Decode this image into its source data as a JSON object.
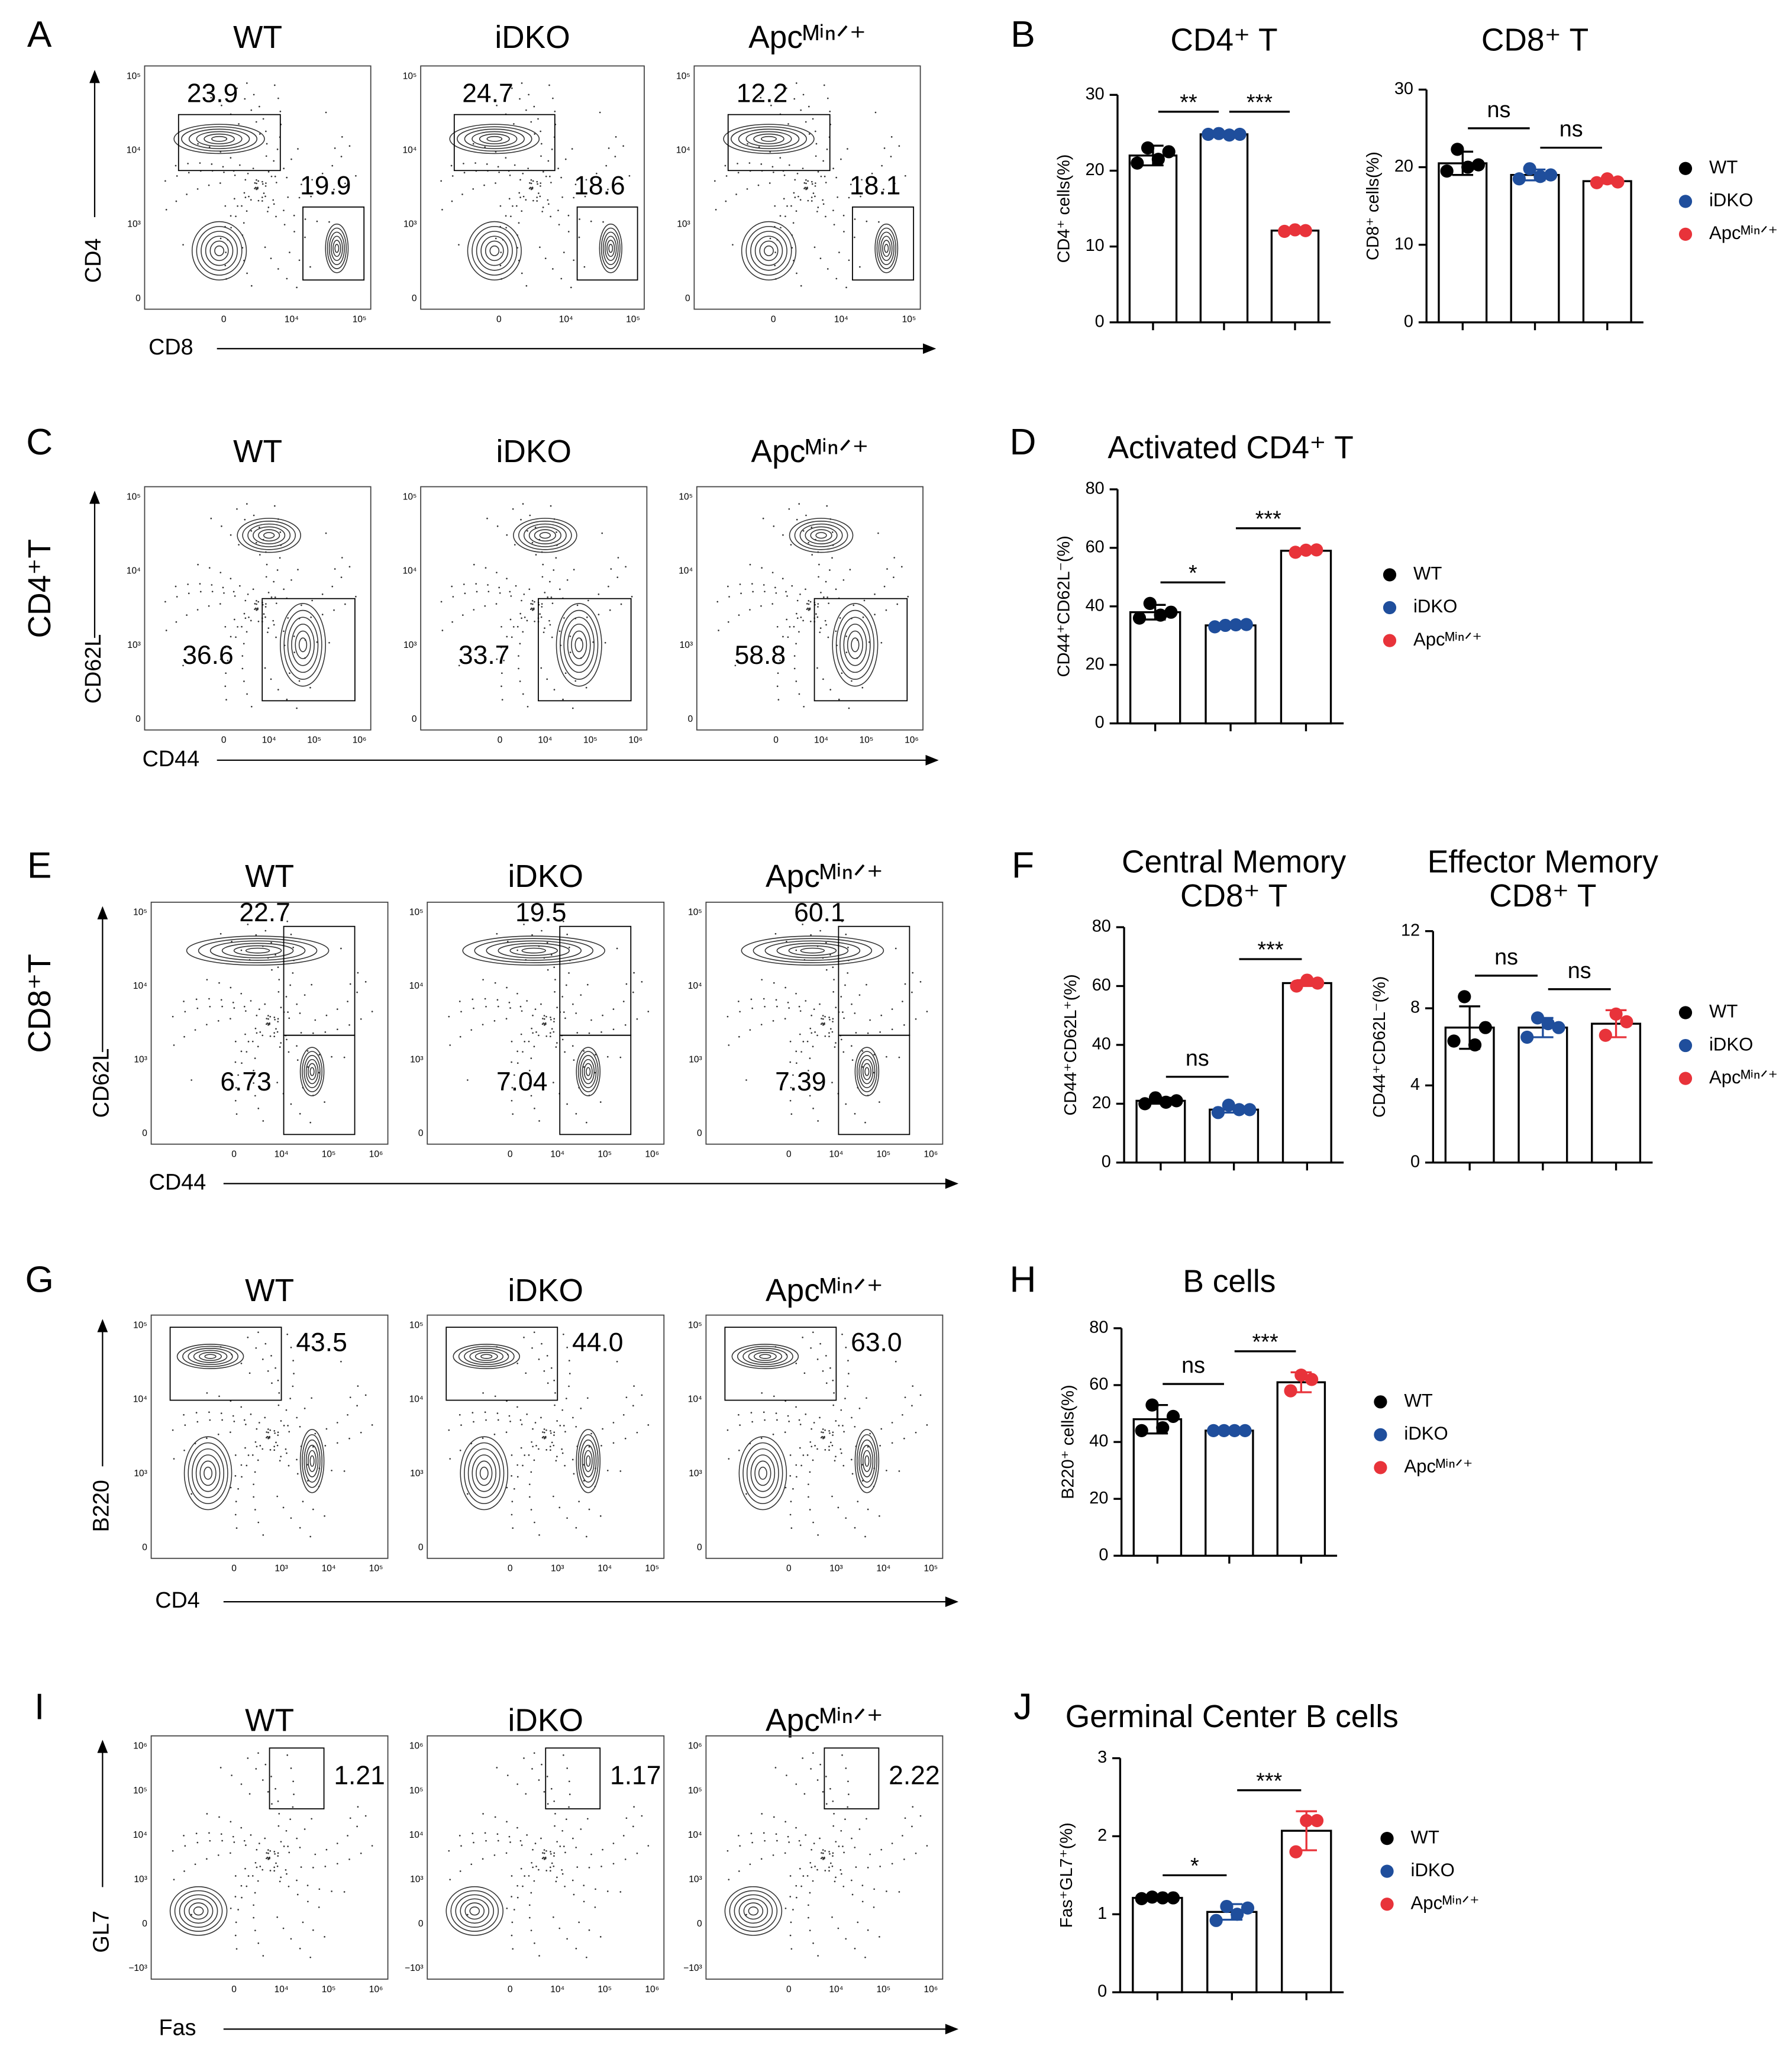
{
  "panel_letters": [
    "A",
    "B",
    "C",
    "D",
    "E",
    "F",
    "G",
    "H",
    "I",
    "J"
  ],
  "flow_rows": [
    {
      "columns": [
        "WT",
        "iDKO",
        "Apcᴹⁱⁿᐟ⁺"
      ],
      "xlabel": "CD8",
      "ylabel": "CD4",
      "yticks": [
        "10⁵",
        "10⁴",
        "10³",
        "0"
      ],
      "xticks": [
        "0",
        "10⁴",
        "10⁵"
      ],
      "gates": [
        [
          "23.9",
          "19.9"
        ],
        [
          "24.7",
          "18.6"
        ],
        [
          "12.2",
          "18.1"
        ]
      ]
    },
    {
      "columns": [
        "WT",
        "iDKO",
        "Apcᴹⁱⁿᐟ⁺"
      ],
      "xlabel": "CD44",
      "ylabel": "CD62L",
      "row_label": "CD4⁺T",
      "yticks": [
        "10⁵",
        "10⁴",
        "10³",
        "0"
      ],
      "xticks": [
        "0",
        "10⁴",
        "10⁵",
        "10⁶"
      ],
      "gates": [
        [
          "36.6"
        ],
        [
          "33.7"
        ],
        [
          "58.8"
        ]
      ]
    },
    {
      "columns": [
        "WT",
        "iDKO",
        "Apcᴹⁱⁿᐟ⁺"
      ],
      "xlabel": "CD44",
      "ylabel": "CD62L",
      "row_label": "CD8⁺T",
      "yticks": [
        "10⁵",
        "10⁴",
        "10³",
        "0"
      ],
      "xticks": [
        "0",
        "10⁴",
        "10⁵",
        "10⁶"
      ],
      "gates": [
        [
          "22.7",
          "6.73"
        ],
        [
          "19.5",
          "7.04"
        ],
        [
          "60.1",
          "7.39"
        ]
      ]
    },
    {
      "columns": [
        "WT",
        "iDKO",
        "Apcᴹⁱⁿᐟ⁺"
      ],
      "xlabel": "CD4",
      "ylabel": "B220",
      "yticks": [
        "10⁵",
        "10⁴",
        "10³",
        "0"
      ],
      "xticks": [
        "0",
        "10³",
        "10⁴",
        "10⁵"
      ],
      "gates": [
        [
          "43.5"
        ],
        [
          "44.0"
        ],
        [
          "63.0"
        ]
      ]
    },
    {
      "columns": [
        "WT",
        "iDKO",
        "Apcᴹⁱⁿᐟ⁺"
      ],
      "xlabel": "Fas",
      "ylabel": "GL7",
      "yticks": [
        "10⁶",
        "10⁵",
        "10⁴",
        "10³",
        "0",
        "−10³"
      ],
      "xticks": [
        "0",
        "10⁴",
        "10⁵",
        "10⁶"
      ],
      "gates": [
        [
          "1.21"
        ],
        [
          "1.17"
        ],
        [
          "2.22"
        ]
      ]
    }
  ],
  "chart_data": [
    {
      "type": "bar",
      "title": "CD4⁺ T",
      "ylabel": "CD4⁺ cells(%)",
      "ylim": [
        0,
        30
      ],
      "yticks": [
        0,
        10,
        20,
        30
      ],
      "annotations": [
        "**",
        "***"
      ],
      "series": [
        {
          "name": "WT",
          "color": "#000000",
          "values": [
            22
          ],
          "errors": [
            1.3
          ],
          "points": [
            21,
            23,
            21.5,
            22.5
          ]
        },
        {
          "name": "iDKO",
          "color": "#1f4e9c",
          "values": [
            24.8
          ],
          "errors": [
            0.2
          ],
          "points": [
            24.8,
            24.9,
            24.7,
            24.8
          ]
        },
        {
          "name": "Apcᴹⁱⁿᐟ⁺",
          "color": "#e8333a",
          "values": [
            12.1
          ],
          "errors": [
            0.2
          ],
          "points": [
            12,
            12.2,
            12.1
          ]
        }
      ]
    },
    {
      "type": "bar",
      "title": "CD8⁺ T",
      "ylabel": "CD8⁺ cells(%)",
      "ylim": [
        0,
        30
      ],
      "yticks": [
        0,
        10,
        20,
        30
      ],
      "annotations": [
        "ns",
        "ns"
      ],
      "legend": "right",
      "series": [
        {
          "name": "WT",
          "color": "#000000",
          "values": [
            20.5
          ],
          "errors": [
            1.5
          ],
          "points": [
            19.5,
            22.3,
            20,
            20.3
          ]
        },
        {
          "name": "iDKO",
          "color": "#1f4e9c",
          "values": [
            19
          ],
          "errors": [
            0.7
          ],
          "points": [
            18.5,
            19.8,
            18.8,
            19
          ]
        },
        {
          "name": "Apcᴹⁱⁿᐟ⁺",
          "color": "#e8333a",
          "values": [
            18.2
          ],
          "errors": [
            0.3
          ],
          "points": [
            18,
            18.5,
            18.1
          ]
        }
      ]
    },
    {
      "type": "bar",
      "title": "Activated CD4⁺ T",
      "ylabel": "CD44⁺CD62L⁻(%)",
      "ylim": [
        0,
        80
      ],
      "yticks": [
        0,
        20,
        40,
        60,
        80
      ],
      "annotations": [
        "*",
        "***"
      ],
      "legend": "right",
      "series": [
        {
          "name": "WT",
          "color": "#000000",
          "values": [
            38
          ],
          "errors": [
            2.5
          ],
          "points": [
            36,
            41,
            37,
            38
          ]
        },
        {
          "name": "iDKO",
          "color": "#1f4e9c",
          "values": [
            33.5
          ],
          "errors": [
            0.4
          ],
          "points": [
            33,
            33.5,
            33.7,
            33.8
          ]
        },
        {
          "name": "Apcᴹⁱⁿᐟ⁺",
          "color": "#e8333a",
          "values": [
            59
          ],
          "errors": [
            0.5
          ],
          "points": [
            58.5,
            59.2,
            59.3
          ]
        }
      ]
    },
    {
      "type": "bar",
      "title": [
        "Central Memory",
        "CD8⁺ T"
      ],
      "ylabel": "CD44⁺CD62L⁺(%)",
      "ylim": [
        0,
        80
      ],
      "yticks": [
        0,
        20,
        40,
        60,
        80
      ],
      "annotations": [
        "ns",
        "***"
      ],
      "series": [
        {
          "name": "WT",
          "color": "#000000",
          "values": [
            21
          ],
          "errors": [
            1
          ],
          "points": [
            20,
            22,
            20.5,
            21
          ]
        },
        {
          "name": "iDKO",
          "color": "#1f4e9c",
          "values": [
            18
          ],
          "errors": [
            1
          ],
          "points": [
            17,
            19.5,
            18,
            18
          ]
        },
        {
          "name": "Apcᴹⁱⁿᐟ⁺",
          "color": "#e8333a",
          "values": [
            61
          ],
          "errors": [
            1
          ],
          "points": [
            60,
            62,
            61
          ]
        }
      ]
    },
    {
      "type": "bar",
      "title": [
        "Effector Memory",
        "CD8⁺ T"
      ],
      "ylabel": "CD44⁺CD62L⁻(%)",
      "ylim": [
        0,
        12
      ],
      "yticks": [
        0,
        4,
        8,
        12
      ],
      "annotations": [
        "ns",
        "ns"
      ],
      "legend": "right",
      "series": [
        {
          "name": "WT",
          "color": "#000000",
          "values": [
            7
          ],
          "errors": [
            1.1
          ],
          "points": [
            6.3,
            8.6,
            6.1,
            7
          ]
        },
        {
          "name": "iDKO",
          "color": "#1f4e9c",
          "values": [
            7
          ],
          "errors": [
            0.5
          ],
          "points": [
            6.5,
            7.5,
            7.2,
            7
          ]
        },
        {
          "name": "Apcᴹⁱⁿᐟ⁺",
          "color": "#e8333a",
          "values": [
            7.2
          ],
          "errors": [
            0.7
          ],
          "points": [
            6.6,
            7.7,
            7.3
          ]
        }
      ]
    },
    {
      "type": "bar",
      "title": "B cells",
      "ylabel": "B220⁺ cells(%)",
      "ylim": [
        0,
        80
      ],
      "yticks": [
        0,
        20,
        40,
        60,
        80
      ],
      "annotations": [
        "ns",
        "***"
      ],
      "legend": "right",
      "series": [
        {
          "name": "WT",
          "color": "#000000",
          "values": [
            48
          ],
          "errors": [
            5
          ],
          "points": [
            44,
            53,
            45,
            49
          ]
        },
        {
          "name": "iDKO",
          "color": "#1f4e9c",
          "values": [
            44
          ],
          "errors": [
            0.2
          ],
          "points": [
            44,
            44,
            44,
            44
          ]
        },
        {
          "name": "Apcᴹⁱⁿᐟ⁺",
          "color": "#e8333a",
          "values": [
            61
          ],
          "errors": [
            3.5
          ],
          "points": [
            58,
            63.5,
            62
          ]
        }
      ]
    },
    {
      "type": "bar",
      "title": "Germinal Center B cells",
      "ylabel": "Fas⁺GL7⁺(%)",
      "ylim": [
        0,
        3
      ],
      "yticks": [
        0,
        1,
        2,
        3
      ],
      "annotations": [
        "*",
        "***"
      ],
      "legend": "right",
      "series": [
        {
          "name": "WT",
          "color": "#000000",
          "values": [
            1.21
          ],
          "errors": [
            0.02
          ],
          "points": [
            1.2,
            1.22,
            1.21,
            1.21
          ]
        },
        {
          "name": "iDKO",
          "color": "#1f4e9c",
          "values": [
            1.03
          ],
          "errors": [
            0.1
          ],
          "points": [
            0.92,
            1.1,
            1.0,
            1.08
          ]
        },
        {
          "name": "Apcᴹⁱⁿᐟ⁺",
          "color": "#e8333a",
          "values": [
            2.07
          ],
          "errors": [
            0.25
          ],
          "points": [
            1.8,
            2.2,
            2.2
          ]
        }
      ]
    }
  ]
}
